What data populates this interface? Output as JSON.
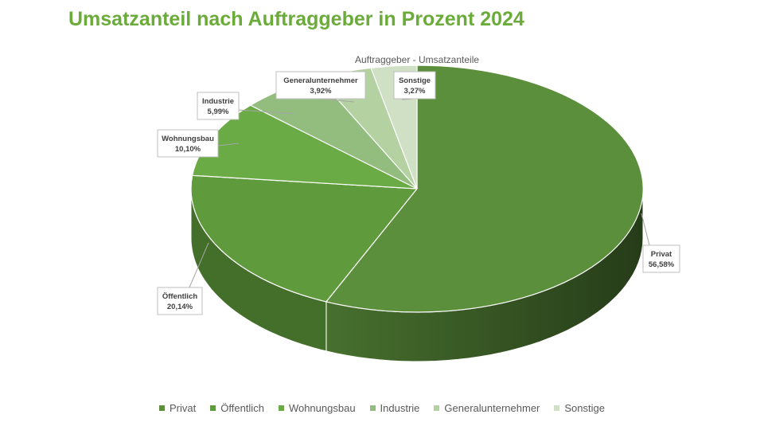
{
  "title": "Umsatzanteil nach Auftraggeber in Prozent 2024",
  "chart_data": {
    "type": "pie",
    "title": "Auftraggeber - Umsatzanteile",
    "legend_position": "bottom",
    "three_d": true,
    "slices": [
      {
        "name": "Privat",
        "value": 56.58,
        "label": "56,58%",
        "color": "#5b8f3b"
      },
      {
        "name": "Öffentlich",
        "value": 20.14,
        "label": "20,14%",
        "color": "#5f9a3c"
      },
      {
        "name": "Wohnungsbau",
        "value": 10.1,
        "label": "10,10%",
        "color": "#6aab45"
      },
      {
        "name": "Industrie",
        "value": 5.99,
        "label": "5,99%",
        "color": "#93bd7e"
      },
      {
        "name": "Generalunternehmer",
        "value": 3.92,
        "label": "3,92%",
        "color": "#b3d1a1"
      },
      {
        "name": "Sonstige",
        "value": 3.27,
        "label": "3,27%",
        "color": "#cfe0c5"
      }
    ]
  }
}
